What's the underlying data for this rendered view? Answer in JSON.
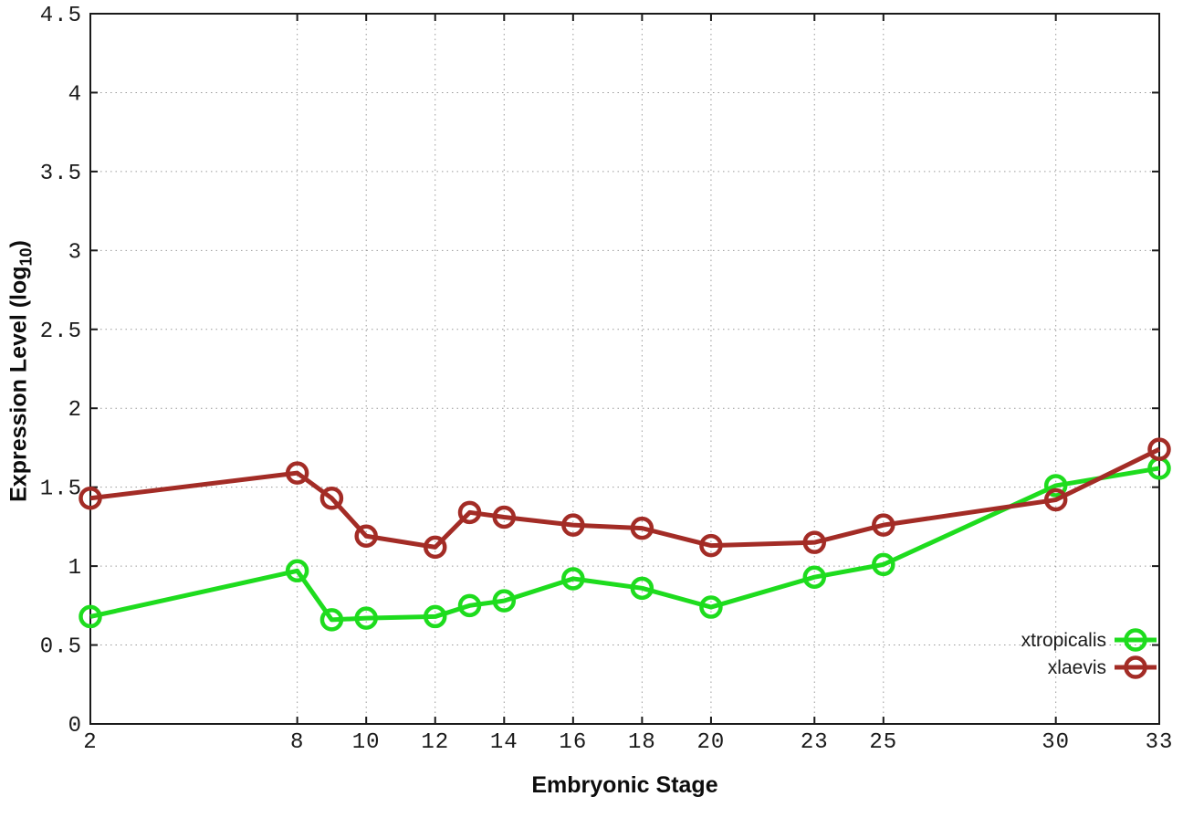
{
  "chart_data": {
    "type": "line",
    "xlabel": "Embryonic Stage",
    "ylabel": "Expression Level (log₁₀)",
    "ylabel_parts": {
      "main": "Expression Level (log",
      "sub": "10",
      "end": ")"
    },
    "x": [
      2,
      8,
      9,
      10,
      12,
      13,
      14,
      16,
      18,
      20,
      23,
      25,
      30,
      33
    ],
    "series": [
      {
        "name": "xtropicalis",
        "color": "#1edc1e",
        "values": [
          0.68,
          0.97,
          0.66,
          0.67,
          0.68,
          0.75,
          0.78,
          0.92,
          0.86,
          0.74,
          0.93,
          1.01,
          1.51,
          1.62
        ]
      },
      {
        "name": "xlaevis",
        "color": "#a32c26",
        "values": [
          1.43,
          1.59,
          1.43,
          1.19,
          1.12,
          1.34,
          1.31,
          1.26,
          1.24,
          1.13,
          1.15,
          1.26,
          1.42,
          1.74
        ]
      }
    ],
    "xlim": [
      2,
      33
    ],
    "ylim": [
      0,
      4.5
    ],
    "x_ticks": [
      2,
      8,
      10,
      12,
      14,
      16,
      18,
      20,
      23,
      25,
      30,
      33
    ],
    "y_ticks": [
      0,
      0.5,
      1,
      1.5,
      2,
      2.5,
      3,
      3.5,
      4,
      4.5
    ],
    "grid": "dotted",
    "legend_position": "inside-bottom-right",
    "marker": "open-circle"
  },
  "styles": {
    "background": "#ffffff",
    "axis_color": "#1a1a1a",
    "grid_color": "#9a9a9a",
    "tick_label_color": "#1a1a1a"
  }
}
